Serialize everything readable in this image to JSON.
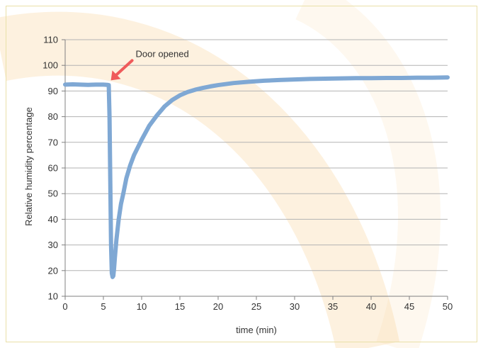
{
  "chart_data": {
    "type": "line",
    "xlabel": "time (min)",
    "ylabel": "Relative humidity percentage",
    "xlim": [
      0,
      50
    ],
    "ylim": [
      10,
      110
    ],
    "x_ticks": [
      0,
      5,
      10,
      15,
      20,
      25,
      30,
      35,
      40,
      45,
      50
    ],
    "y_ticks": [
      10,
      20,
      30,
      40,
      50,
      60,
      70,
      80,
      90,
      100,
      110
    ],
    "grid": "horizontal",
    "colors": {
      "series": "#7fa8d4",
      "arrow": "#ef5b5b",
      "grid": "#b3b3b3",
      "background_arc": "#f8d7a4"
    },
    "annotation": {
      "text": "Door opened",
      "x": 5.7,
      "y": 92.5
    },
    "series": [
      {
        "x": [
          0,
          1,
          2,
          3,
          4,
          5,
          5.5,
          5.7,
          5.8,
          5.9,
          6.0,
          6.1,
          6.2,
          6.3,
          6.4,
          6.5,
          6.7,
          7.0,
          7.3,
          7.6,
          8.0,
          8.5,
          9.0,
          9.5,
          10,
          11,
          12,
          13,
          14,
          15,
          16,
          17,
          18,
          19,
          20,
          22,
          24,
          26,
          28,
          30,
          32,
          34,
          36,
          38,
          40,
          42,
          44,
          46,
          48,
          50
        ],
        "y": [
          92.5,
          92.6,
          92.5,
          92.4,
          92.5,
          92.5,
          92.4,
          92.3,
          80,
          55,
          30,
          19,
          17.5,
          18,
          21,
          25,
          32,
          40,
          46,
          50,
          56,
          61,
          65,
          68,
          71,
          76.5,
          80.5,
          84,
          86.5,
          88.3,
          89.6,
          90.5,
          91.2,
          91.8,
          92.3,
          93.1,
          93.6,
          94.0,
          94.3,
          94.5,
          94.7,
          94.8,
          94.9,
          95.0,
          95.0,
          95.1,
          95.1,
          95.2,
          95.2,
          95.3
        ]
      }
    ]
  }
}
